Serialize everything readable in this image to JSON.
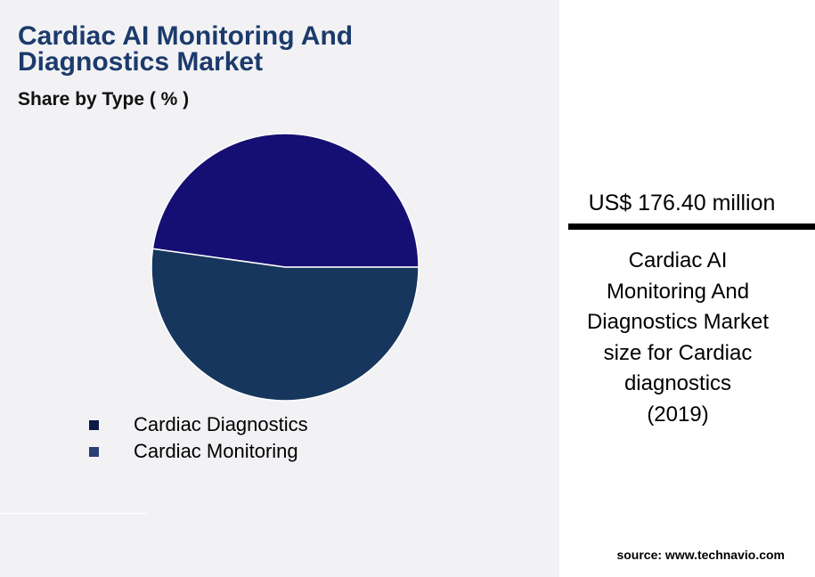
{
  "header": {
    "title": "Cardiac AI Monitoring And Diagnostics Market",
    "subtitle": "Share by Type ( % )"
  },
  "chart_data": {
    "type": "pie",
    "title": "Cardiac AI Monitoring And Diagnostics Market",
    "subtitle": "Share by Type ( % )",
    "categories": [
      "Cardiac Diagnostics",
      "Cardiac Monitoring"
    ],
    "values": [
      47.8,
      52.2
    ],
    "colors": [
      "#160f73",
      "#17365e"
    ],
    "legend_colors": [
      "#0c1a45",
      "#2a3f73"
    ],
    "legend_position": "bottom-left"
  },
  "panel": {
    "value": "US$ 176.40 million",
    "description_lines": [
      "Cardiac AI",
      "Monitoring And",
      "Diagnostics Market",
      "size for Cardiac",
      "diagnostics",
      "(2019)"
    ],
    "source": "source: www.technavio.com"
  }
}
